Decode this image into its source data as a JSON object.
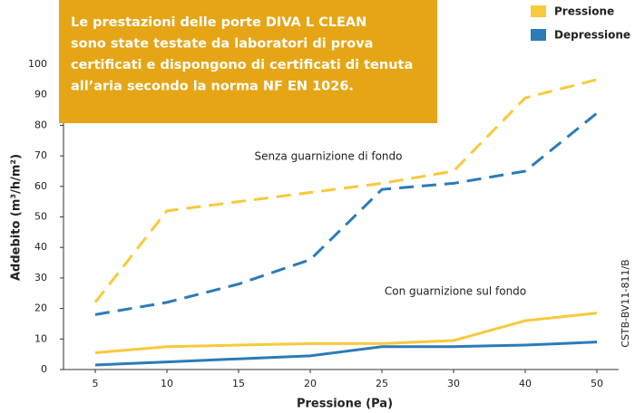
{
  "chart_data": {
    "type": "line",
    "box_text": [
      "Le prestazioni delle porte DIVA L CLEAN",
      "sono state testate da laboratori di prova",
      "certificati e dispongono di certificati di tenuta",
      "all’aria secondo la norma NF EN 1026."
    ],
    "box_color": "#e6a515",
    "x_label": "Pressione  (Pa)",
    "y_label": "Addebito (m³/h/m²)",
    "annotations": [
      "Senza guarnizione di fondo",
      "Con guarnizione sul fondo",
      "CSTB-BV11-811/B"
    ],
    "categories": [
      "5",
      "10",
      "15",
      "20",
      "25",
      "30",
      "40",
      "50"
    ],
    "series": [
      {
        "name": "Pressione",
        "color": "#f8c93a",
        "dashed": true,
        "values": [
          22,
          52,
          55,
          58,
          61,
          65,
          89,
          95
        ]
      },
      {
        "name": "Depressione",
        "color": "#2b7bb9",
        "dashed": true,
        "values": [
          18,
          22,
          28,
          36,
          59,
          61,
          65,
          84
        ]
      },
      {
        "name": "Pressione",
        "color": "#f8c93a",
        "dashed": false,
        "values": [
          5.5,
          7.5,
          8,
          8.5,
          8.5,
          9.5,
          16,
          18.5
        ]
      },
      {
        "name": "Depressione",
        "color": "#2b7bb9",
        "dashed": false,
        "values": [
          1.5,
          2.5,
          3.5,
          4.5,
          7.5,
          7.5,
          8,
          9
        ]
      }
    ],
    "ylim": [
      0,
      100
    ],
    "yticks": [
      0,
      10,
      20,
      30,
      40,
      50,
      60,
      70,
      80,
      90,
      100
    ],
    "grid": false
  }
}
